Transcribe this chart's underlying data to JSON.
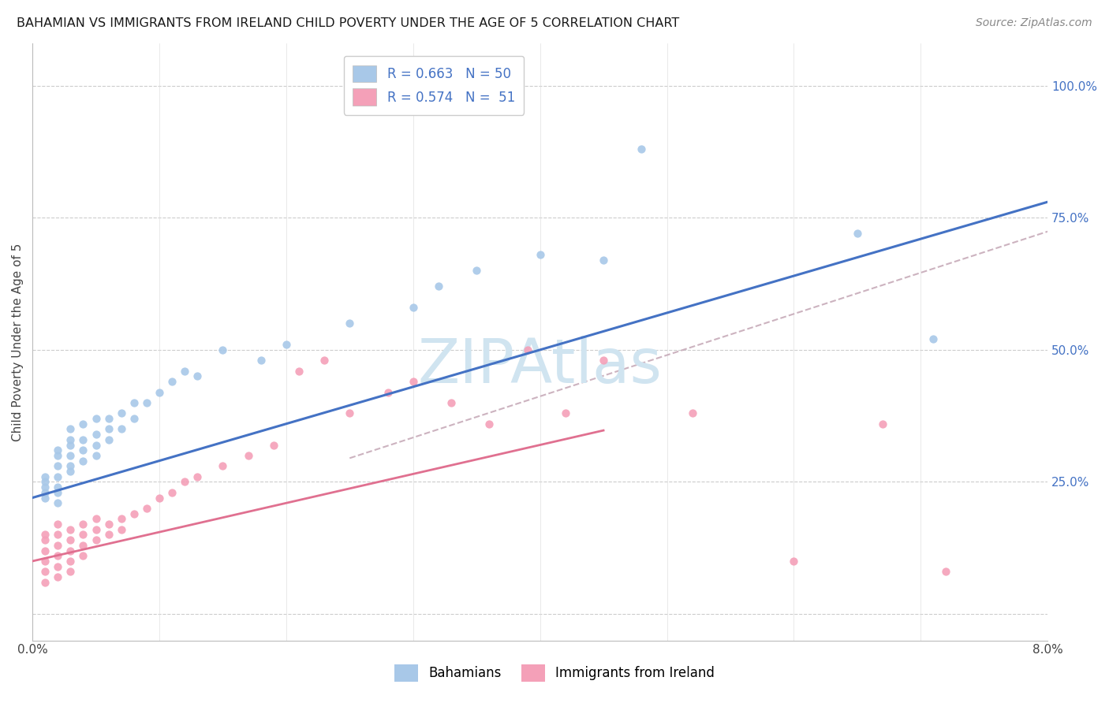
{
  "title": "BAHAMIAN VS IMMIGRANTS FROM IRELAND CHILD POVERTY UNDER THE AGE OF 5 CORRELATION CHART",
  "source": "Source: ZipAtlas.com",
  "ylabel": "Child Poverty Under the Age of 5",
  "ytick_vals": [
    0.0,
    0.25,
    0.5,
    0.75,
    1.0
  ],
  "ytick_labels": [
    "",
    "25.0%",
    "50.0%",
    "75.0%",
    "100.0%"
  ],
  "xlim": [
    0.0,
    0.08
  ],
  "ylim": [
    -0.05,
    1.08
  ],
  "color_blue": "#a8c8e8",
  "color_pink": "#f4a0b8",
  "line_blue": "#4472c4",
  "line_pink": "#e07090",
  "line_gray_dash": "#c0a0b0",
  "watermark_color": "#d0e4f0",
  "blue_intercept": 0.22,
  "blue_slope": 7.0,
  "pink_intercept": 0.1,
  "pink_slope": 5.5,
  "gray_dash_intercept": 0.22,
  "gray_dash_slope": 7.8,
  "bahamian_x": [
    0.001,
    0.001,
    0.001,
    0.001,
    0.001,
    0.002,
    0.002,
    0.002,
    0.002,
    0.002,
    0.002,
    0.002,
    0.003,
    0.003,
    0.003,
    0.003,
    0.003,
    0.003,
    0.004,
    0.004,
    0.004,
    0.004,
    0.005,
    0.005,
    0.005,
    0.005,
    0.006,
    0.006,
    0.006,
    0.007,
    0.007,
    0.008,
    0.008,
    0.009,
    0.01,
    0.011,
    0.012,
    0.013,
    0.015,
    0.018,
    0.02,
    0.025,
    0.03,
    0.032,
    0.035,
    0.04,
    0.045,
    0.048,
    0.065,
    0.071
  ],
  "bahamian_y": [
    0.22,
    0.23,
    0.24,
    0.25,
    0.26,
    0.21,
    0.23,
    0.24,
    0.26,
    0.28,
    0.3,
    0.31,
    0.27,
    0.28,
    0.3,
    0.32,
    0.33,
    0.35,
    0.29,
    0.31,
    0.33,
    0.36,
    0.3,
    0.32,
    0.34,
    0.37,
    0.33,
    0.35,
    0.37,
    0.35,
    0.38,
    0.37,
    0.4,
    0.4,
    0.42,
    0.44,
    0.46,
    0.45,
    0.5,
    0.48,
    0.51,
    0.55,
    0.58,
    0.62,
    0.65,
    0.68,
    0.67,
    0.88,
    0.72,
    0.52
  ],
  "ireland_x": [
    0.001,
    0.001,
    0.001,
    0.001,
    0.001,
    0.001,
    0.002,
    0.002,
    0.002,
    0.002,
    0.002,
    0.002,
    0.003,
    0.003,
    0.003,
    0.003,
    0.003,
    0.004,
    0.004,
    0.004,
    0.004,
    0.005,
    0.005,
    0.005,
    0.006,
    0.006,
    0.007,
    0.007,
    0.008,
    0.009,
    0.01,
    0.011,
    0.012,
    0.013,
    0.015,
    0.017,
    0.019,
    0.021,
    0.023,
    0.025,
    0.028,
    0.03,
    0.033,
    0.036,
    0.039,
    0.042,
    0.045,
    0.052,
    0.06,
    0.067,
    0.072
  ],
  "ireland_y": [
    0.1,
    0.12,
    0.14,
    0.15,
    0.08,
    0.06,
    0.11,
    0.13,
    0.15,
    0.17,
    0.09,
    0.07,
    0.12,
    0.14,
    0.16,
    0.1,
    0.08,
    0.13,
    0.15,
    0.17,
    0.11,
    0.14,
    0.16,
    0.18,
    0.15,
    0.17,
    0.16,
    0.18,
    0.19,
    0.2,
    0.22,
    0.23,
    0.25,
    0.26,
    0.28,
    0.3,
    0.32,
    0.46,
    0.48,
    0.38,
    0.42,
    0.44,
    0.4,
    0.36,
    0.5,
    0.38,
    0.48,
    0.38,
    0.1,
    0.36,
    0.08
  ]
}
